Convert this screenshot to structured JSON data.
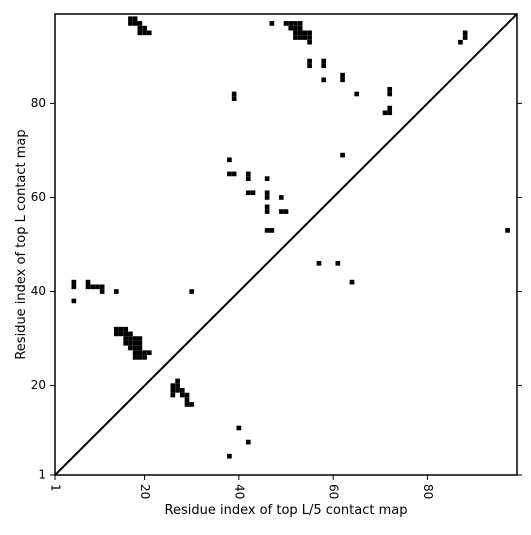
{
  "chart_data": {
    "type": "scatter",
    "title": "",
    "xlabel": "Residue index of top L/5 contact map",
    "ylabel": "Residue index of top L contact map",
    "xlim": [
      1,
      99
    ],
    "ylim": [
      1,
      99
    ],
    "xticks": [
      1,
      20,
      40,
      60,
      80
    ],
    "yticks": [
      1,
      20,
      40,
      60,
      80
    ],
    "xtick_labels": [
      "1",
      "20",
      "40",
      "60",
      "80"
    ],
    "ytick_labels": [
      "1",
      "20",
      "40",
      "60",
      "80"
    ],
    "xtick_rotation_deg": -90,
    "grid": false,
    "legend": "none",
    "marker": "square",
    "marker_color": "#000000",
    "diagonal": [
      [
        1,
        1
      ],
      [
        99,
        99
      ]
    ],
    "series": [
      {
        "values_desc": "top L contacts (upper-left triangle)",
        "points": [
          [
            17,
            98
          ],
          [
            18,
            98
          ],
          [
            17,
            97
          ],
          [
            18,
            97
          ],
          [
            19,
            97
          ],
          [
            19,
            96
          ],
          [
            20,
            96
          ],
          [
            19,
            95
          ],
          [
            20,
            95
          ],
          [
            21,
            95
          ],
          [
            47,
            97
          ],
          [
            50,
            97
          ],
          [
            51,
            97
          ],
          [
            52,
            97
          ],
          [
            53,
            97
          ],
          [
            51,
            96
          ],
          [
            52,
            96
          ],
          [
            53,
            96
          ],
          [
            52,
            95
          ],
          [
            53,
            95
          ],
          [
            54,
            95
          ],
          [
            55,
            95
          ],
          [
            52,
            94
          ],
          [
            53,
            94
          ],
          [
            54,
            94
          ],
          [
            55,
            94
          ],
          [
            55,
            93
          ],
          [
            88,
            95
          ],
          [
            88,
            94
          ],
          [
            87,
            93
          ],
          [
            55,
            89
          ],
          [
            55,
            88
          ],
          [
            58,
            89
          ],
          [
            58,
            88
          ],
          [
            62,
            86
          ],
          [
            62,
            85
          ],
          [
            58,
            85
          ],
          [
            65,
            82
          ],
          [
            72,
            83
          ],
          [
            72,
            82
          ],
          [
            72,
            79
          ],
          [
            71,
            78
          ],
          [
            72,
            78
          ],
          [
            39,
            82
          ],
          [
            39,
            81
          ],
          [
            38,
            68
          ],
          [
            62,
            69
          ],
          [
            38,
            65
          ],
          [
            39,
            65
          ],
          [
            42,
            65
          ],
          [
            42,
            64
          ],
          [
            46,
            64
          ],
          [
            42,
            61
          ],
          [
            43,
            61
          ],
          [
            46,
            61
          ],
          [
            46,
            60
          ],
          [
            49,
            60
          ],
          [
            46,
            58
          ],
          [
            46,
            57
          ],
          [
            49,
            57
          ],
          [
            50,
            57
          ],
          [
            46,
            53
          ],
          [
            47,
            53
          ],
          [
            97,
            53
          ],
          [
            57,
            46
          ],
          [
            61,
            46
          ],
          [
            64,
            42
          ],
          [
            5,
            42
          ],
          [
            5,
            41
          ],
          [
            8,
            42
          ],
          [
            8,
            41
          ],
          [
            9,
            41
          ],
          [
            10,
            41
          ],
          [
            11,
            41
          ],
          [
            11,
            40
          ],
          [
            14,
            40
          ],
          [
            30,
            40
          ],
          [
            5,
            38
          ],
          [
            14,
            32
          ],
          [
            15,
            32
          ],
          [
            16,
            32
          ],
          [
            14,
            31
          ],
          [
            15,
            31
          ],
          [
            16,
            31
          ],
          [
            17,
            31
          ],
          [
            16,
            30
          ],
          [
            17,
            30
          ],
          [
            18,
            30
          ],
          [
            19,
            30
          ],
          [
            16,
            29
          ],
          [
            17,
            29
          ],
          [
            18,
            29
          ],
          [
            19,
            29
          ],
          [
            17,
            28
          ],
          [
            18,
            28
          ],
          [
            19,
            28
          ],
          [
            18,
            27
          ],
          [
            19,
            27
          ],
          [
            20,
            27
          ],
          [
            21,
            27
          ],
          [
            18,
            26
          ],
          [
            19,
            26
          ],
          [
            20,
            26
          ],
          [
            27,
            21
          ],
          [
            26,
            20
          ],
          [
            27,
            20
          ],
          [
            26,
            19
          ],
          [
            27,
            19
          ],
          [
            28,
            19
          ],
          [
            26,
            18
          ],
          [
            28,
            18
          ],
          [
            29,
            18
          ],
          [
            29,
            17
          ],
          [
            29,
            16
          ],
          [
            30,
            16
          ]
        ]
      },
      {
        "values_desc": "top L/5 contacts (lower-right triangle)",
        "points": [
          [
            40,
            11
          ],
          [
            42,
            8
          ],
          [
            38,
            5
          ]
        ]
      }
    ]
  }
}
